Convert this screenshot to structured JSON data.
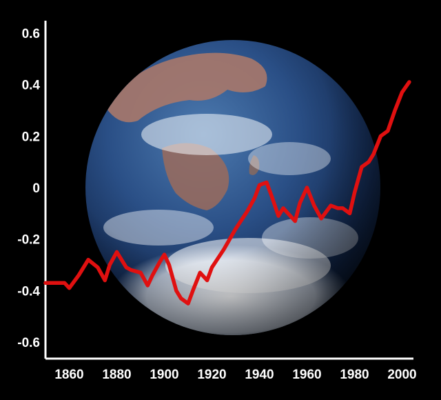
{
  "chart_data": {
    "type": "line",
    "title": "",
    "xlabel": "",
    "ylabel": "",
    "xlim": [
      1850,
      2003
    ],
    "ylim": [
      -0.65,
      0.65
    ],
    "x_ticks": [
      1860,
      1880,
      1900,
      1920,
      1940,
      1960,
      1980,
      2000
    ],
    "y_ticks": [
      0.6,
      0.4,
      0.2,
      0,
      -0.2,
      -0.4,
      -0.6
    ],
    "y_tick_labels": [
      "0.6",
      "0.4",
      "0.2",
      "0",
      "-0.2",
      "-0.4",
      "-0.6"
    ],
    "grid": false,
    "legend": "none",
    "background": "photo of Earth from space",
    "series": [
      {
        "color": "#e01010",
        "x": [
          1850,
          1855,
          1858,
          1860,
          1864,
          1868,
          1872,
          1875,
          1877,
          1880,
          1884,
          1886,
          1890,
          1893,
          1895,
          1898,
          1900,
          1902,
          1905,
          1907,
          1910,
          1912,
          1915,
          1918,
          1920,
          1925,
          1930,
          1935,
          1938,
          1940,
          1943,
          1945,
          1948,
          1950,
          1953,
          1955,
          1957,
          1960,
          1963,
          1966,
          1970,
          1973,
          1975,
          1978,
          1980,
          1983,
          1986,
          1988,
          1991,
          1994,
          1997,
          2000,
          2003
        ],
        "values": [
          -0.37,
          -0.37,
          -0.37,
          -0.39,
          -0.34,
          -0.28,
          -0.31,
          -0.36,
          -0.3,
          -0.25,
          -0.31,
          -0.32,
          -0.33,
          -0.38,
          -0.34,
          -0.29,
          -0.26,
          -0.3,
          -0.4,
          -0.43,
          -0.45,
          -0.4,
          -0.33,
          -0.36,
          -0.31,
          -0.24,
          -0.16,
          -0.09,
          -0.04,
          0.01,
          0.02,
          -0.03,
          -0.11,
          -0.08,
          -0.11,
          -0.13,
          -0.06,
          0.0,
          -0.07,
          -0.12,
          -0.07,
          -0.08,
          -0.08,
          -0.1,
          -0.02,
          0.08,
          0.1,
          0.13,
          0.2,
          0.22,
          0.3,
          0.37,
          0.41
        ]
      }
    ]
  }
}
